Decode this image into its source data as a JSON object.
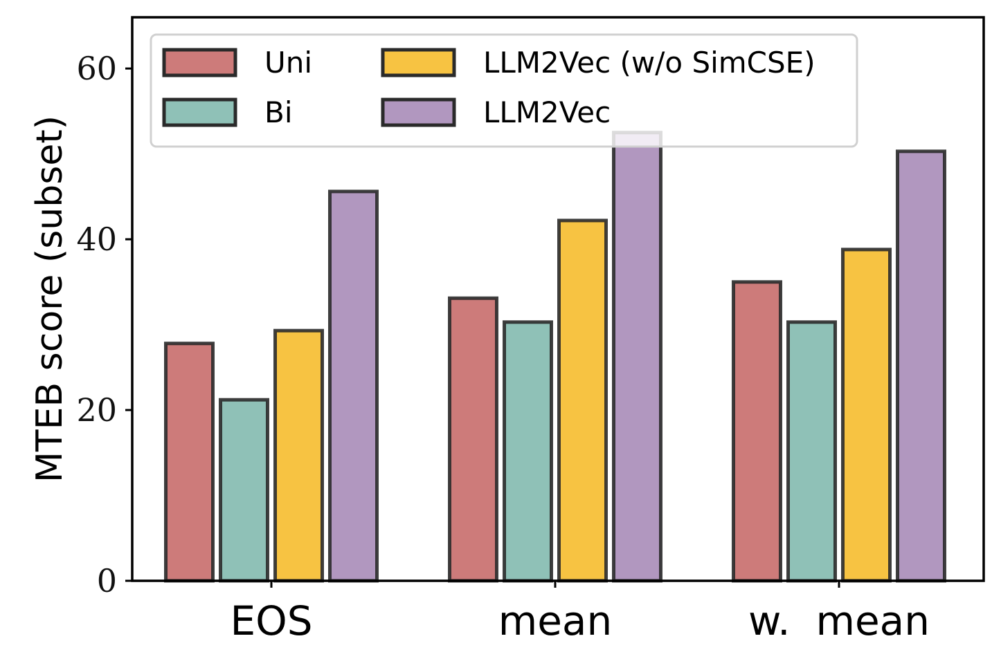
{
  "chart_data": {
    "type": "bar",
    "categories": [
      "EOS",
      "mean",
      "w.  mean"
    ],
    "series": [
      {
        "name": "Uni",
        "color": "#cd7b7a",
        "values": [
          27.8,
          33.1,
          35.0
        ]
      },
      {
        "name": "Bi",
        "color": "#8fc1b7",
        "values": [
          21.2,
          30.3,
          30.3
        ]
      },
      {
        "name": "LLM2Vec (w/o SimCSE)",
        "color": "#f7c342",
        "values": [
          29.3,
          42.2,
          38.8
        ]
      },
      {
        "name": "LLM2Vec",
        "color": "#b197bf",
        "values": [
          45.6,
          52.5,
          50.3
        ]
      }
    ],
    "title": "",
    "xlabel": "",
    "ylabel": "MTEB score (subset)",
    "ylim": [
      0,
      60
    ],
    "yticks": [
      0,
      20,
      40,
      60
    ],
    "grid": false,
    "legend_position": "top-left",
    "legend_columns": 2,
    "edge_color": "#2a2a2a"
  }
}
